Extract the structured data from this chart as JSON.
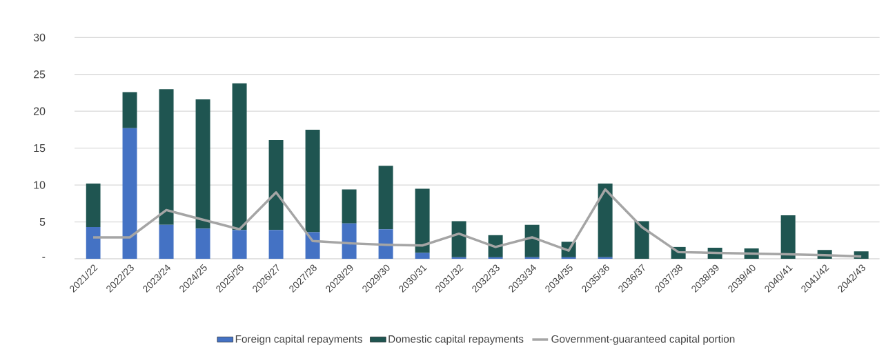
{
  "chart_data": {
    "type": "bar",
    "stacked": true,
    "categories": [
      "2021/22",
      "2022/23",
      "2023/24",
      "2024/25",
      "2025/26",
      "2026/27",
      "2027/28",
      "2028/29",
      "2029/30",
      "2030/31",
      "2031/32",
      "2032/33",
      "2033/34",
      "2034/35",
      "2035/36",
      "2036/37",
      "2037/38",
      "2038/39",
      "2039/40",
      "2040/41",
      "2041/42",
      "2042/43"
    ],
    "series": [
      {
        "name": "Foreign capital repayments",
        "color": "#4472c4",
        "values": [
          4.3,
          17.7,
          4.6,
          4.1,
          3.9,
          3.9,
          3.6,
          4.8,
          4.0,
          0.8,
          0.2,
          0.2,
          0.2,
          0.2,
          0.2,
          0,
          0,
          0,
          0,
          0,
          0,
          0
        ]
      },
      {
        "name": "Domestic capital repayments",
        "color": "#1f5551",
        "values": [
          5.9,
          4.9,
          18.4,
          17.5,
          19.9,
          12.2,
          13.9,
          4.6,
          8.6,
          8.7,
          4.9,
          3.0,
          4.4,
          2.1,
          10.0,
          5.1,
          1.6,
          1.5,
          1.4,
          5.9,
          1.2,
          1.0
        ]
      },
      {
        "name": "Government-guaranteed capital portion",
        "type": "line",
        "color": "#a5a5a5",
        "values": [
          2.9,
          2.9,
          6.6,
          5.3,
          4.0,
          9.0,
          2.4,
          2.1,
          1.9,
          1.8,
          3.4,
          1.6,
          2.9,
          1.1,
          9.4,
          4.3,
          0.9,
          0.8,
          0.7,
          0.6,
          0.5,
          0.3
        ]
      }
    ],
    "ylim": [
      0,
      30
    ],
    "yticks": [
      {
        "value": 0,
        "label": "-"
      },
      5,
      10,
      15,
      20,
      25,
      30
    ],
    "grid": "y",
    "legend": "bottom"
  }
}
